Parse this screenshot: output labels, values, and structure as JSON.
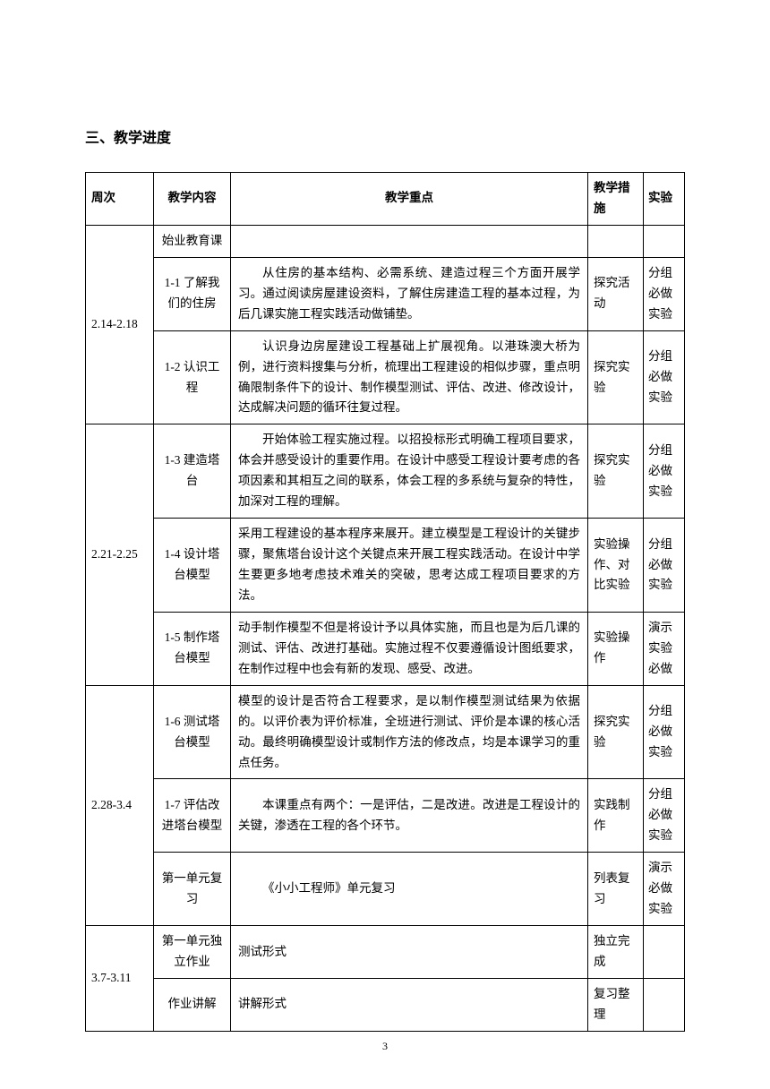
{
  "sectionTitle": "三、教学进度",
  "headers": {
    "week": "周次",
    "content": "教学内容",
    "focus": "教学重点",
    "measure": "教学措施",
    "experiment": "实验"
  },
  "rows": [
    {
      "week": "2.14-2.18",
      "content": "始业教育课",
      "focus": "",
      "measure": "",
      "experiment": "",
      "rowspanWeek": 3,
      "emptyFocus": true
    },
    {
      "content": "1-1 了解我们的住房",
      "focus": "从住房的基本结构、必需系统、建造过程三个方面开展学习。通过阅读房屋建设资料，了解住房建造工程的基本过程，为后几课实施工程实践活动做铺垫。",
      "measure": "探究活动",
      "experiment": "分组必做实验",
      "indent": true
    },
    {
      "content": "1-2 认识工程",
      "focus": "认识身边房屋建设工程基础上扩展视角。以港珠澳大桥为例，进行资料搜集与分析，梳理出工程建设的相似步骤，重点明确限制条件下的设计、制作模型测试、评估、改进、修改设计，达成解决问题的循环往复过程。",
      "measure": "探究实验",
      "experiment": "分组必做实验",
      "indent": true
    },
    {
      "week": "2.21-2.25",
      "content": "1-3 建造塔台",
      "focus": "开始体验工程实施过程。以招投标形式明确工程项目要求，体会并感受设计的重要作用。在设计中感受工程设计要考虑的各项因素和其相互之间的联系，体会工程的多系统与复杂的特性，加深对工程的理解。",
      "measure": "探究实验",
      "experiment": "分组必做实验",
      "rowspanWeek": 3,
      "indent": true
    },
    {
      "content": "1-4 设计塔台模型",
      "focus": "采用工程建设的基本程序来展开。建立模型是工程设计的关键步骤，聚焦塔台设计这个关键点来开展工程实践活动。在设计中学生要更多地考虑技术难关的突破，思考达成工程项目要求的方法。",
      "measure": "实验操作、对比实验",
      "experiment": "分组必做实验"
    },
    {
      "content": "1-5 制作塔台模型",
      "focus": "动手制作模型不但是将设计予以具体实施，而且也是为后几课的测试、评估、改进打基础。实施过程不仅要遵循设计图纸要求，在制作过程中也会有新的发现、感受、改进。",
      "measure": "实验操作",
      "experiment": "演示实验必做"
    },
    {
      "week": "2.28-3.4",
      "content": "1-6 测试塔台模型",
      "focus": "模型的设计是否符合工程要求，是以制作模型测试结果为依据的。以评价表为评价标准，全班进行测试、评价是本课的核心活动。最终明确模型设计或制作方法的修改点，均是本课学习的重点任务。",
      "measure": "探究实验",
      "experiment": "分组必做实验",
      "rowspanWeek": 3
    },
    {
      "content": "1-7 评估改进塔台模型",
      "focus": "本课重点有两个：一是评估，二是改进。改进是工程设计的关键，渗透在工程的各个环节。",
      "measure": "实践制作",
      "experiment": "分组必做实验",
      "indent": true
    },
    {
      "content": "第一单元复习",
      "focus": "《小小工程师》单元复习",
      "measure": "列表复习",
      "experiment": "演示必做实验",
      "indent": true
    },
    {
      "week": "3.7-3.11",
      "content": "第一单元独立作业",
      "focus": "测试形式",
      "measure": "独立完成",
      "experiment": "",
      "rowspanWeek": 2
    },
    {
      "content": "作业讲解",
      "focus": "讲解形式",
      "measure": "复习整理",
      "experiment": ""
    }
  ],
  "pageNumber": "3"
}
